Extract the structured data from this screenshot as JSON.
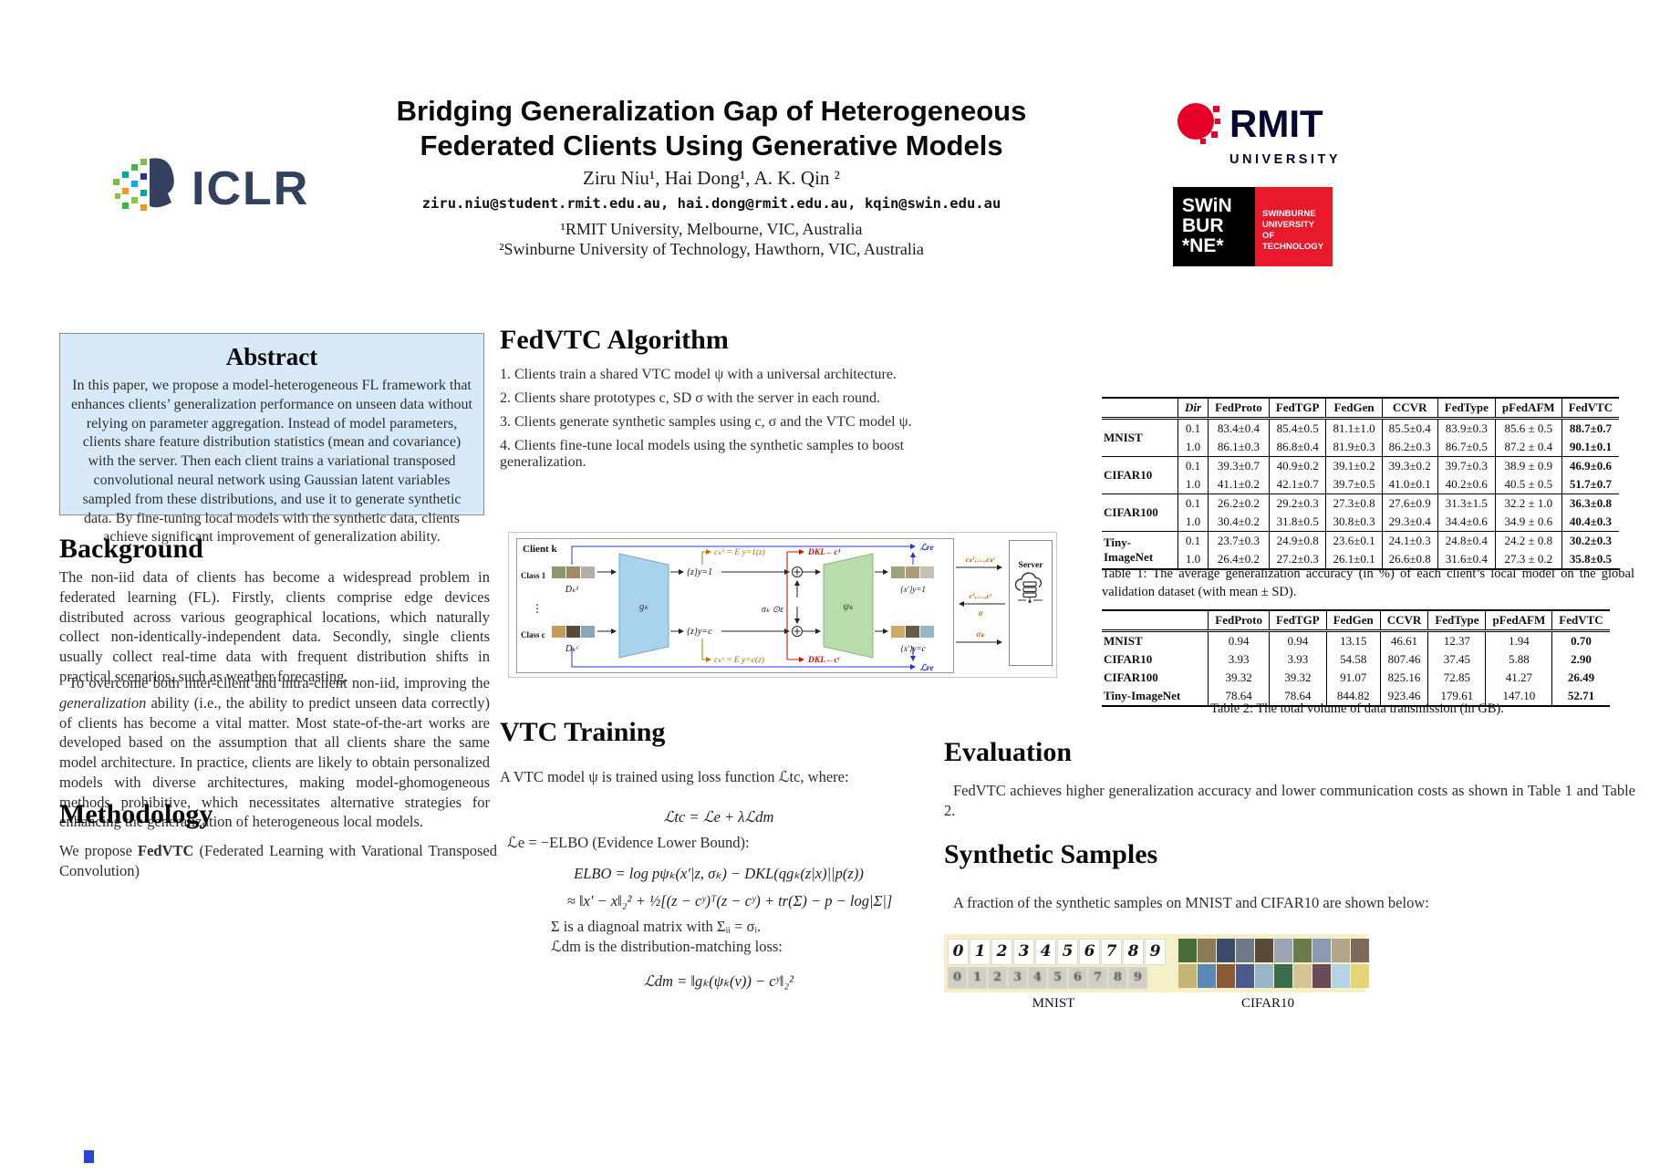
{
  "header": {
    "title_line1": "Bridging Generalization Gap of Heterogeneous",
    "title_line2": "Federated Clients Using Generative Models",
    "authors": "Ziru Niu¹, Hai Dong¹, A. K. Qin ²",
    "emails": "ziru.niu@student.rmit.edu.au, hai.dong@rmit.edu.au, kqin@swin.edu.au",
    "affil1": "¹RMIT University, Melbourne, VIC, Australia",
    "affil2": "²Swinburne University of Technology, Hawthorn, VIC, Australia"
  },
  "logos": {
    "iclr_text": "ICLR",
    "rmit_text": "RMIT",
    "rmit_sub": "UNIVERSITY",
    "swin_line1": "SWiN",
    "swin_line2": "BUR",
    "swin_line3": "*NE*",
    "swin_red_box_text": "SWINBURNE UNIVERSITY OF TECHNOLOGY",
    "rmit_red": "#e60028",
    "swin_red": "#e8192b",
    "iclr_navy": "#33415f"
  },
  "abstract": {
    "title": "Abstract",
    "text": "In this paper, we propose a model-heterogeneous FL framework that enhances clients’ generalization performance on unseen data without relying on parameter aggregation. Instead of model parameters, clients share feature distribution statistics (mean and covariance) with the server. Then each client trains a variational transposed convolutional neural network using Gaussian latent variables sampled from these distributions, and use it to generate synthetic data. By fine-tuning local models with the synthetic data, clients achieve significant improvement of generalization ability."
  },
  "background": {
    "title": "Background",
    "para1": "The non-iid data of clients has become a widespread problem in federated learning (FL). Firstly, clients comprise edge devices distributed across various geographical locations, which naturally collect non-identically-independent data. Secondly, single clients usually collect real-time data with frequent distribution shifts in practical scenarios, such as weather forecasting.",
    "para2_pre": "To overcome both inter-client and intra-client non-iid, improving the ",
    "para2_italic": "generalization",
    "para2_post": " ability (i.e., the ability to predict unseen data correctly) of clients has become a vital matter. Most state-of-the-art works are developed based on the assumption that all clients share the same model architecture. In practice, clients are likely to obtain personalized models with diverse architectures, making model-ghomogeneous methods prohibitive, which necessitates alternative strategies for enhancing the generalization of heterogeneous local models."
  },
  "methodology": {
    "title": "Methodology",
    "text_pre": "We propose ",
    "text_bold": "FedVTC",
    "text_post": " (Federated Learning with Varational Transposed Convolution)"
  },
  "algorithm": {
    "title": "FedVTC Algorithm",
    "steps": [
      "Clients train a shared VTC model ψ with a universal architecture.",
      "Clients share prototypes c, SD σ with the server in each round.",
      "Clients generate synthetic samples using c, σ and the VTC model ψ.",
      "Clients fine-tune local models using the synthetic samples to boost generalization."
    ]
  },
  "diagram": {
    "client_label": "Client k",
    "class1_label": "Class 1",
    "classc_label": "Class c",
    "dots": "⋮",
    "d1_label": "Dₖ¹",
    "dc_label": "Dₖᶜ",
    "encoder_label": "gₖ",
    "decoder_label": "ψₖ",
    "z1_label": "{z}y=1",
    "zc_label": "{z}y=c",
    "c1_eq": "cₖ¹ = E y=1(z)",
    "cc_eq": "cₖᶜ = E y=c(z)",
    "dkl1": "DKL←c¹",
    "dklc": "DKL←cᶜ",
    "sigma_eps": "σₖ ⊙ε",
    "x1_label": "{x′}y=1",
    "xc_label": "{x′}y=c",
    "lre_top": "ℒre",
    "lre_bottom": "ℒre",
    "server_label": "Server",
    "msg_up": "cₖ¹,…,cₖᶜ",
    "msg_down": "c¹,…,cᶜ",
    "msg_down_sigma": "σ",
    "msg_sigma_k": "σₖ"
  },
  "vtc_training": {
    "title": "VTC Training",
    "intro": "A VTC model ψ is trained using loss function ℒtc, where:",
    "f1": "ℒtc = ℒe + λℒdm",
    "f2": "ℒe = −ELBO (Evidence Lower Bound):",
    "f3": "ELBO = log pψₖ(x′|z, σₖ) − DKL(qgₖ(z|x)||p(z))",
    "f4": "≈ ‖x′ − x‖₂² + ½[(z − cʸ)ᵀ(z − cʸ) + tr(Σ) − p − log|Σ|]",
    "note1": "Σ is a diagnoal matrix with Σᵢᵢ = σᵢ.",
    "note2": "ℒdm is the distribution-matching loss:",
    "f5": "ℒdm = ‖gₖ(ψₖ(v)) − cʸ‖₂²"
  },
  "table1": {
    "columns": [
      "",
      "Dir",
      "FedProto",
      "FedTGP",
      "FedGen",
      "CCVR",
      "FedType",
      "pFedAFM",
      "FedVTC"
    ],
    "groups": [
      {
        "name": "MNIST",
        "rows": [
          {
            "dir": "0.1",
            "values": [
              "83.4±0.4",
              "85.4±0.5",
              "81.1±1.0",
              "85.5±0.4",
              "83.9±0.3",
              "85.6 ± 0.5",
              "88.7±0.7"
            ]
          },
          {
            "dir": "1.0",
            "values": [
              "86.1±0.3",
              "86.8±0.4",
              "81.9±0.3",
              "86.2±0.3",
              "86.7±0.5",
              "87.2 ± 0.4",
              "90.1±0.1"
            ]
          }
        ]
      },
      {
        "name": "CIFAR10",
        "rows": [
          {
            "dir": "0.1",
            "values": [
              "39.3±0.7",
              "40.9±0.2",
              "39.1±0.2",
              "39.3±0.2",
              "39.7±0.3",
              "38.9 ± 0.9",
              "46.9±0.6"
            ]
          },
          {
            "dir": "1.0",
            "values": [
              "41.1±0.2",
              "42.1±0.7",
              "39.7±0.5",
              "41.0±0.1",
              "40.2±0.6",
              "40.5 ± 0.5",
              "51.7±0.7"
            ]
          }
        ]
      },
      {
        "name": "CIFAR100",
        "rows": [
          {
            "dir": "0.1",
            "values": [
              "26.2±0.2",
              "29.2±0.3",
              "27.3±0.8",
              "27.6±0.9",
              "31.3±1.5",
              "32.2 ± 1.0",
              "36.3±0.8"
            ]
          },
          {
            "dir": "1.0",
            "values": [
              "30.4±0.2",
              "31.8±0.5",
              "30.8±0.3",
              "29.3±0.4",
              "34.4±0.6",
              "34.9 ± 0.6",
              "40.4±0.3"
            ]
          }
        ]
      },
      {
        "name": "Tiny-ImageNet",
        "rows": [
          {
            "dir": "0.1",
            "values": [
              "23.7±0.3",
              "24.9±0.8",
              "23.6±0.1",
              "24.1±0.3",
              "24.8±0.4",
              "24.2 ± 0.8",
              "30.2±0.3"
            ]
          },
          {
            "dir": "1.0",
            "values": [
              "26.4±0.2",
              "27.2±0.3",
              "26.1±0.1",
              "26.6±0.8",
              "31.6±0.4",
              "27.3 ± 0.2",
              "35.8±0.5"
            ]
          }
        ]
      }
    ],
    "caption": "Table 1: The average generalization accuracy (in %) of each client’s local model on the global validation dataset (with mean ± SD)."
  },
  "table2": {
    "columns": [
      "",
      "FedProto",
      "FedTGP",
      "FedGen",
      "CCVR",
      "FedType",
      "pFedAFM",
      "FedVTC"
    ],
    "rows": [
      {
        "name": "MNIST",
        "values": [
          "0.94",
          "0.94",
          "13.15",
          "46.61",
          "12.37",
          "1.94",
          "0.70"
        ]
      },
      {
        "name": "CIFAR10",
        "values": [
          "3.93",
          "3.93",
          "54.58",
          "807.46",
          "37.45",
          "5.88",
          "2.90"
        ]
      },
      {
        "name": "CIFAR100",
        "values": [
          "39.32",
          "39.32",
          "91.07",
          "825.16",
          "72.85",
          "41.27",
          "26.49"
        ]
      },
      {
        "name": "Tiny-ImageNet",
        "values": [
          "78.64",
          "78.64",
          "844.82",
          "923.46",
          "179.61",
          "147.10",
          "52.71"
        ]
      }
    ],
    "caption": "Table 2: The total volume of data transmission (in GB)."
  },
  "evaluation": {
    "title": "Evaluation",
    "text": "FedVTC achieves higher generalization accuracy and lower communication costs as shown in Table 1 and Table 2."
  },
  "synthetic": {
    "title": "Synthetic Samples",
    "text": "A fraction of the synthetic samples on MNIST and CIFAR10 are shown below:",
    "digits": [
      "0",
      "1",
      "2",
      "3",
      "4",
      "5",
      "6",
      "7",
      "8",
      "9"
    ],
    "mnist_label": "MNIST",
    "cifar_label": "CIFAR10",
    "strip_bg": "#f6f0c8",
    "cifar_colors_row1": [
      "#4a6b3a",
      "#8a7a55",
      "#3a4a6b",
      "#6e7a8a",
      "#5a4a3a",
      "#9aa5b5",
      "#6b7a4a",
      "#8a9ab5",
      "#b5a58a",
      "#7a6b5a"
    ],
    "cifar_colors_row2": [
      "#c5b575",
      "#5a8ab5",
      "#8a5a3a",
      "#4a5a8a",
      "#9ab5c5",
      "#3a6b4a",
      "#d5c595",
      "#6b4a5a",
      "#b5d5e5",
      "#e5d575"
    ]
  }
}
